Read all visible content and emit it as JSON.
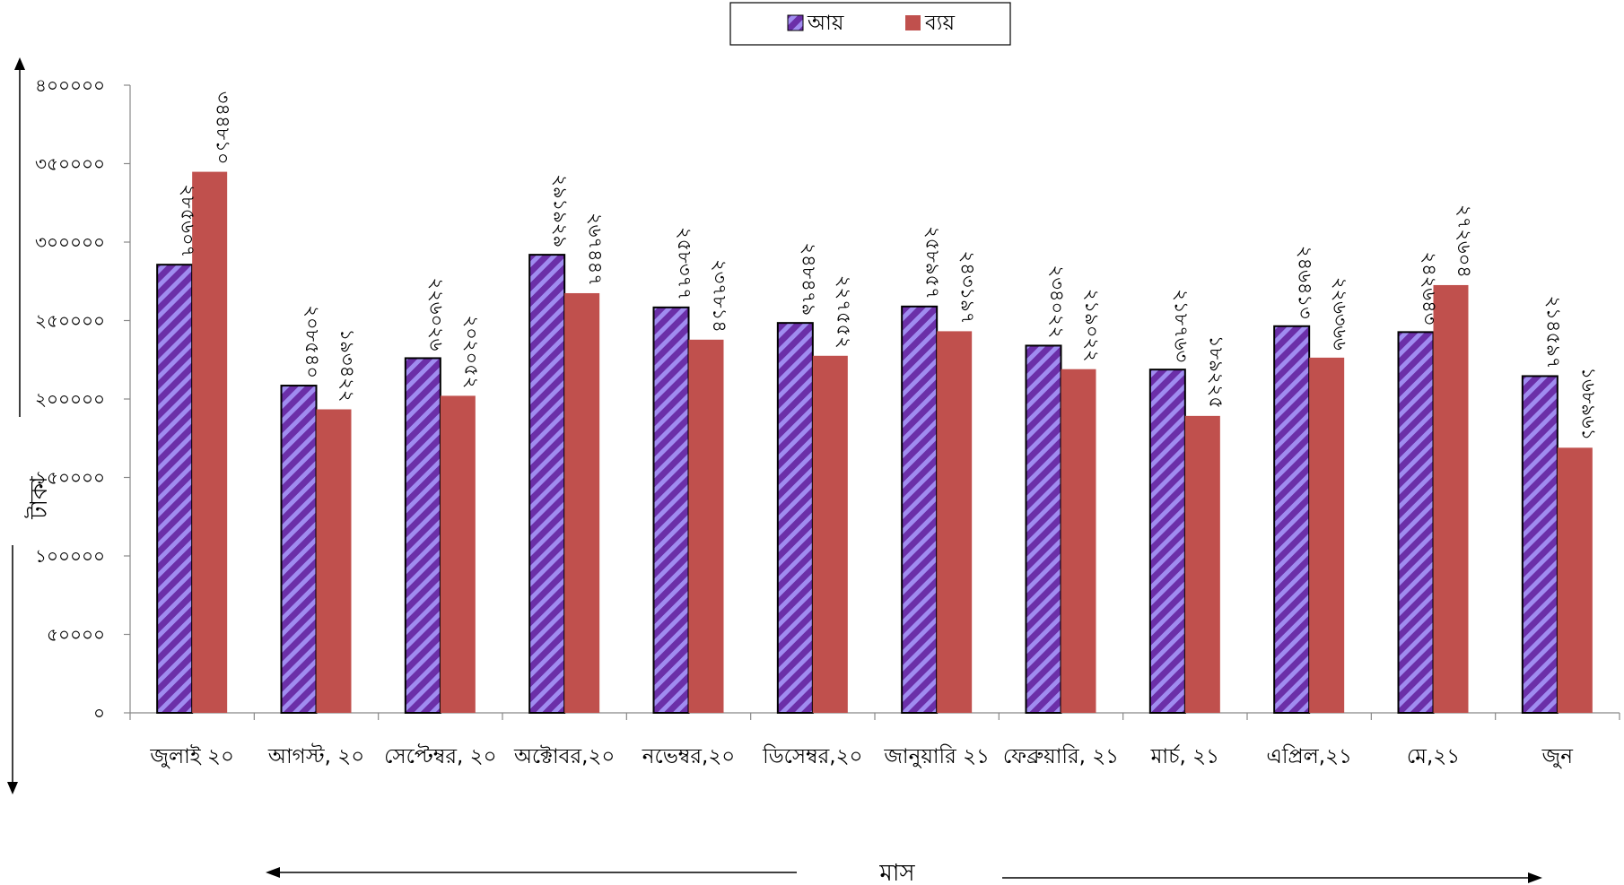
{
  "chart_data": {
    "type": "bar",
    "title": "",
    "xlabel": "মাস",
    "ylabel": "টাকা",
    "ylim": [
      0,
      400000
    ],
    "yticks": [
      0,
      50000,
      100000,
      150000,
      200000,
      250000,
      300000,
      350000,
      400000
    ],
    "ytick_labels": [
      "০",
      "৫০০০০",
      "১০০০০০",
      "১৫০০০০",
      "২০০০০০",
      "২৫০০০০",
      "৩০০০০০",
      "৩৫০০০০",
      "৪০০০০০"
    ],
    "grid": false,
    "legend_position": "top-center",
    "categories": [
      "জুলাই ২০",
      "আগস্ট, ২০",
      "সেপ্টেম্বর, ২০",
      "অক্টোবর,২০",
      "নভেম্বর,২০",
      "ডিসেম্বর,২০",
      "জানুয়ারি ২১",
      "ফেব্রুয়ারি, ২১",
      "মার্চ, ২১",
      "এপ্রিল,২১",
      "মে,২১",
      "জুন"
    ],
    "series": [
      {
        "name": "আয়",
        "color": "#7F3FBF",
        "pattern": "diagonal-stripes",
        "values": [
          285607,
          208540,
          226026,
          291929,
          258377,
          248479,
          258957,
          234022,
          218763,
          246413,
          242643,
          214597
        ],
        "labels": [
          "২৮৫৬০৭",
          "২০৮৫৪০",
          "২২৬০২৬",
          "২৯১৯২৯",
          "২৫৮৩৭৭",
          "২৪৮৪৭৯",
          "২৫৮৯৫৭",
          "২৩৪০২২",
          "২১৮৭৬৩",
          "২৪৬৪১৩",
          "২৪২৬৪৩",
          "২১৪৫৯৭"
        ]
      },
      {
        "name": "ব্যয়",
        "color": "#C0504D",
        "pattern": "solid",
        "values": [
          344810,
          193422,
          202052,
          267447,
          237814,
          227552,
          243197,
          219022,
          189225,
          226366,
          272604,
          168961
        ],
        "labels": [
          "৩৪৪৮১০",
          "১৯৩৪২২",
          "২০২০৫২",
          "২৬৭৪৪৭",
          "২৩৭৮১৪",
          "২২৭৫৫২",
          "২৪৩১৯৭",
          "২১৯০২২",
          "১৮৯২২৫",
          "২২৬৩৬৬",
          "২৭২৬০৪",
          "১৬৮৯৬১"
        ]
      }
    ]
  }
}
